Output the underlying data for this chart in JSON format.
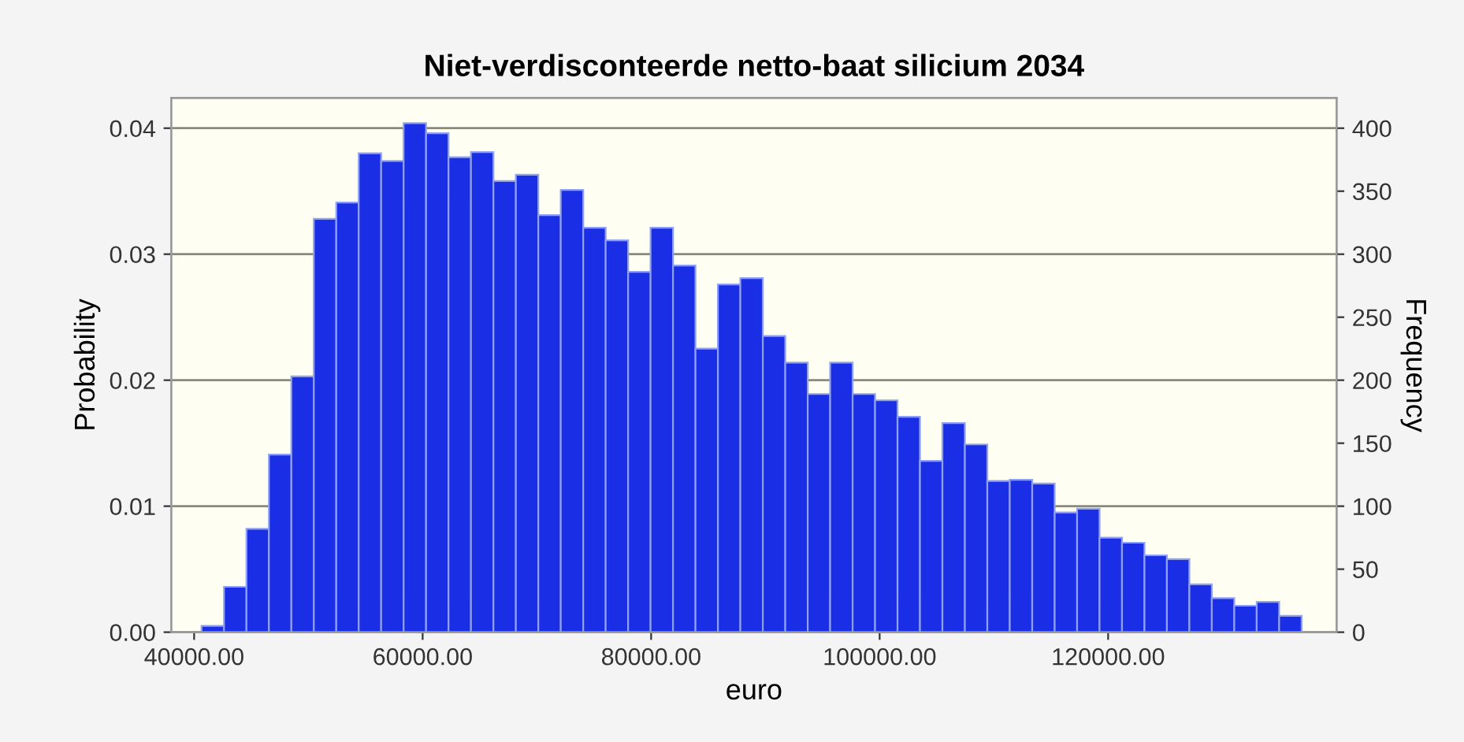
{
  "chart_data": {
    "type": "histogram",
    "title": "Niet-verdisconteerde netto-baat silicium 2034",
    "xlabel": "euro",
    "ylabel": "Probability",
    "y2label": "Frequency",
    "bins": [
      40650,
      42615,
      44580,
      46545,
      48510,
      50475,
      52440,
      54405,
      56370,
      58335,
      60300,
      62265,
      64230,
      66195,
      68160,
      70125,
      72090,
      74055,
      76020,
      77985,
      79950,
      81915,
      83880,
      85845,
      87810,
      89775,
      91740,
      93705,
      95670,
      97635,
      99600,
      101565,
      103530,
      105495,
      107460,
      109425,
      111390,
      113355,
      115320,
      117285,
      119250,
      121215,
      123180,
      125145,
      127110,
      129075,
      131040,
      133005,
      134970,
      136935
    ],
    "values": [
      0.0005,
      0.0036,
      0.0082,
      0.0141,
      0.0203,
      0.0328,
      0.0341,
      0.038,
      0.0374,
      0.0404,
      0.0396,
      0.0377,
      0.0381,
      0.0358,
      0.0363,
      0.0331,
      0.0351,
      0.0321,
      0.0311,
      0.0286,
      0.0321,
      0.0291,
      0.0225,
      0.0276,
      0.0281,
      0.0235,
      0.0214,
      0.0189,
      0.0214,
      0.0189,
      0.0184,
      0.0171,
      0.0136,
      0.0166,
      0.0149,
      0.012,
      0.0121,
      0.0118,
      0.0095,
      0.0098,
      0.0075,
      0.0071,
      0.0061,
      0.0058,
      0.0038,
      0.0027,
      0.0021,
      0.0024,
      0.0013
    ],
    "color": "#1a2ee6",
    "xlim": [
      38000,
      140000
    ],
    "xticks": [
      {
        "value": 40000,
        "label": "40000.00"
      },
      {
        "value": 60000,
        "label": "60000.00"
      },
      {
        "value": 80000,
        "label": "80000.00"
      },
      {
        "value": 100000,
        "label": "100000.00"
      },
      {
        "value": 120000,
        "label": "120000.00"
      }
    ],
    "ylim": [
      0,
      0.0424
    ],
    "yticks": [
      {
        "value": 0,
        "label": "0.00"
      },
      {
        "value": 0.01,
        "label": "0.01"
      },
      {
        "value": 0.02,
        "label": "0.02"
      },
      {
        "value": 0.03,
        "label": "0.03"
      },
      {
        "value": 0.04,
        "label": "0.04"
      }
    ],
    "y2lim": [
      0,
      424
    ],
    "y2ticks": [
      0,
      50,
      100,
      150,
      200,
      250,
      300,
      350,
      400
    ],
    "grid": "y"
  }
}
